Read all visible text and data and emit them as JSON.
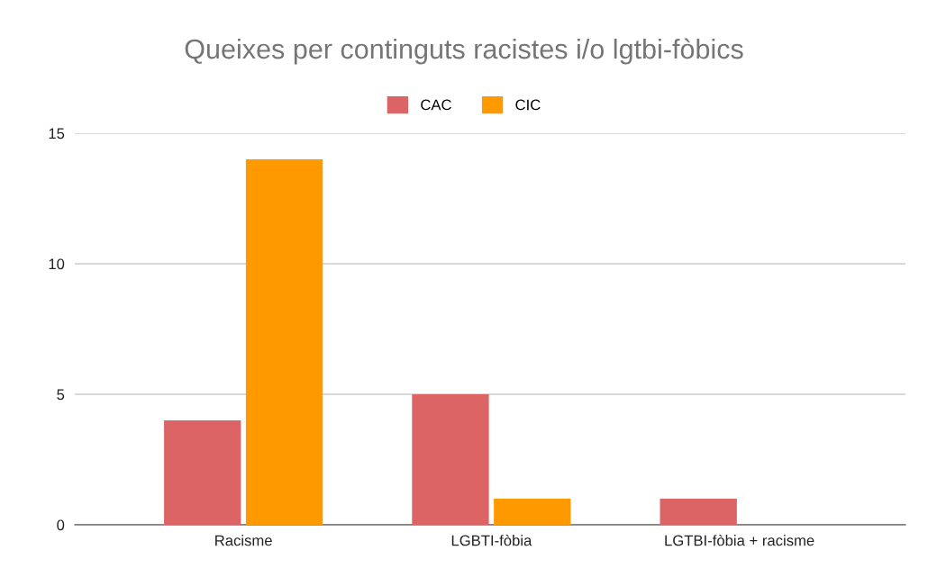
{
  "chart_data": {
    "type": "bar",
    "title": "Queixes per continguts racistes i/o lgtbi-fòbics",
    "categories": [
      "Racisme",
      "LGBTI-fòbia",
      "LGTBI-fòbia + racisme"
    ],
    "series": [
      {
        "name": "CAC",
        "color": "#dd6464",
        "values": [
          4,
          5,
          1
        ]
      },
      {
        "name": "CIC",
        "color": "#ff9900",
        "values": [
          14,
          1,
          0
        ]
      }
    ],
    "ylim": [
      0,
      15
    ],
    "yticks": [
      0,
      5,
      10,
      15
    ],
    "grid": "y",
    "legend": "top"
  }
}
